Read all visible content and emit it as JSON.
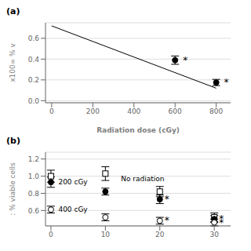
{
  "chart_data": [
    {
      "type": "scatter",
      "title": "(a)",
      "x_label": "Radiation dose (cGy)",
      "y_label": "x100= % v",
      "xlim": [
        -30,
        870
      ],
      "xticks": [
        0,
        200,
        400,
        600,
        800
      ],
      "ylim": [
        -0.02,
        0.75
      ],
      "yticks": [
        {
          "value": 0,
          "label": "0.0"
        },
        0.2,
        0.4,
        0.6
      ],
      "grid": true,
      "series": [
        {
          "type": "line",
          "x": [
            0,
            800
          ],
          "values": [
            0.72,
            0.12
          ],
          "color": "#000000"
        },
        {
          "type": "scatter",
          "x": [
            600,
            800
          ],
          "values": [
            0.39,
            0.175
          ],
          "errors": [
            0.04,
            0.03
          ],
          "color": "#000000",
          "marker": "filled_circle"
        }
      ],
      "annotations": [
        {
          "text": "*",
          "x": 615,
          "y": 0.39
        },
        {
          "text": "*",
          "x": 815,
          "y": 0.175
        }
      ]
    },
    {
      "type": "scatter",
      "title": "(b)",
      "y_label": ": % viable cells",
      "xlim": [
        -1,
        33
      ],
      "xticks": [
        0,
        10,
        20,
        30
      ],
      "ylim": [
        0.42,
        1.28
      ],
      "yticks": [
        0.6,
        0.8,
        {
          "value": 1.0,
          "label": "1.0"
        },
        1.2
      ],
      "grid": true,
      "series": [
        {
          "type": "scatter",
          "x": [
            0,
            10,
            20,
            30
          ],
          "values": [
            1.0,
            1.03,
            0.82,
            0.52
          ],
          "errors": [
            0.07,
            0.08,
            0.06,
            0.05
          ],
          "color": "#000000",
          "marker": "open_square"
        },
        {
          "type": "scatter",
          "x": [
            0,
            10,
            20,
            30
          ],
          "values": [
            0.93,
            0.82,
            0.73,
            0.5
          ],
          "errors": [
            0.06,
            0.04,
            0.05,
            0.04
          ],
          "color": "#000000",
          "marker": "filled_circle"
        },
        {
          "type": "scatter",
          "x": [
            0,
            10,
            20,
            30
          ],
          "values": [
            0.61,
            0.52,
            0.48,
            0.46
          ],
          "errors": [
            0.04,
            0.04,
            0.04,
            0.04
          ],
          "color": "#000000",
          "marker": "open_circle"
        }
      ],
      "annotations": [
        {
          "text": "*",
          "x": 20,
          "y": 0.73
        },
        {
          "text": "*",
          "x": 30,
          "y": 0.5
        },
        {
          "text": "*",
          "x": 20,
          "y": 0.48
        },
        {
          "text": "*",
          "x": 30,
          "y": 0.46
        },
        {
          "text": "No radiation",
          "x": 12,
          "y": 0.97
        },
        {
          "text": "200 cGy",
          "x": 0.5,
          "y": 0.93
        },
        {
          "text": "400 cGy",
          "x": 0.5,
          "y": 0.615
        }
      ]
    }
  ]
}
